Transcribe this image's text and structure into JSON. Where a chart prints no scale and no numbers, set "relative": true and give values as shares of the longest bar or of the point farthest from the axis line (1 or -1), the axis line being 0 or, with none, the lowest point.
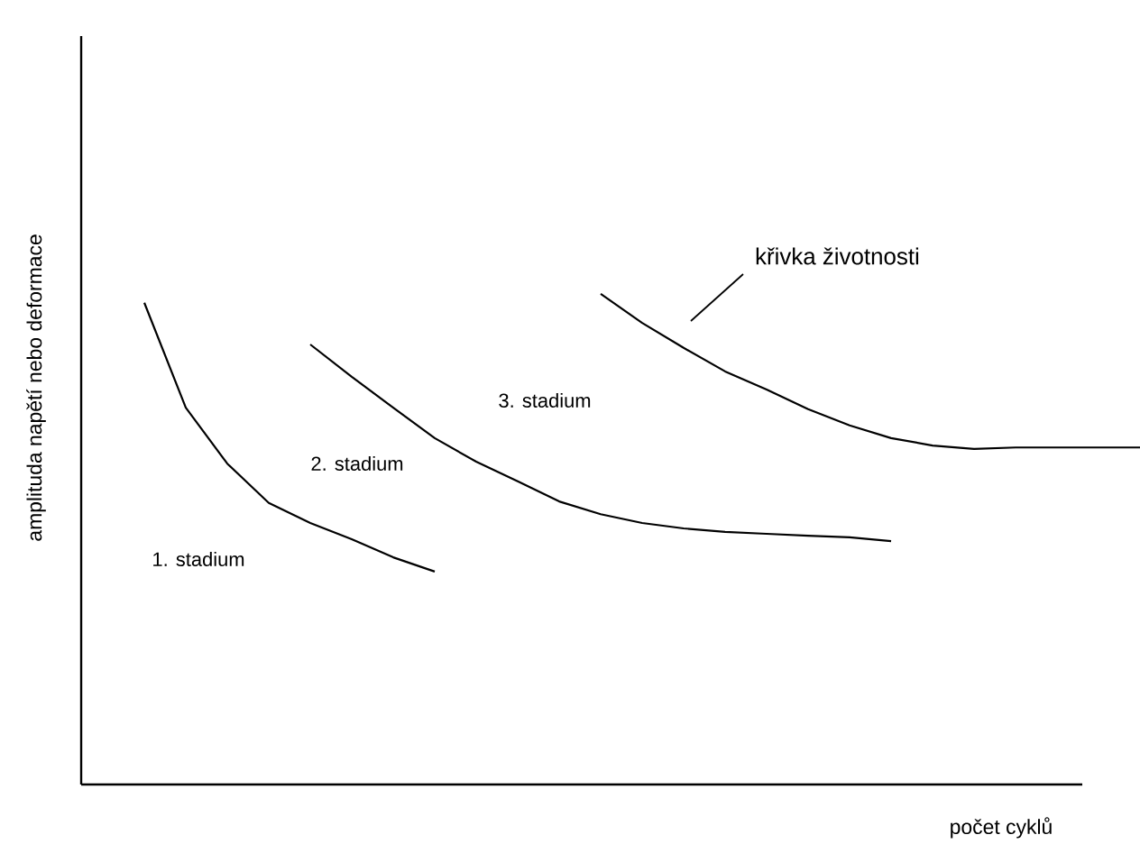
{
  "chart_data": {
    "type": "line",
    "relative": true,
    "xlabel": "počet cyklů",
    "ylabel": "amplituda napětí nebo deformace",
    "marker": "none",
    "line_style": "solid",
    "categories": [
      null,
      null,
      null,
      null,
      null,
      null,
      null,
      null,
      null,
      null,
      null,
      null,
      null,
      null,
      null,
      null,
      null,
      null,
      null,
      null,
      null,
      null,
      null,
      null,
      null
    ],
    "series": [
      {
        "color": "#000000",
        "values": [
          0.982,
          0.768,
          0.654,
          0.574,
          0.533,
          0.5,
          0.463,
          0.434,
          null,
          null,
          null,
          null,
          null,
          null,
          null,
          null,
          null,
          null,
          null,
          null,
          null,
          null,
          null,
          null,
          null
        ]
      },
      {
        "color": "#000000",
        "values": [
          null,
          null,
          null,
          null,
          0.897,
          0.831,
          0.768,
          0.706,
          0.658,
          0.618,
          0.577,
          0.551,
          0.533,
          0.522,
          0.515,
          0.511,
          0.507,
          0.504,
          0.496,
          null,
          null,
          null,
          null,
          null,
          null
        ]
      },
      {
        "color": "#000000",
        "values": [
          null,
          null,
          null,
          null,
          null,
          null,
          null,
          null,
          null,
          null,
          null,
          1.0,
          0.941,
          0.89,
          0.842,
          0.805,
          0.765,
          0.732,
          0.706,
          0.691,
          0.684,
          0.687,
          0.687,
          0.687,
          0.687
        ]
      }
    ],
    "annotations": [
      "1. stadium",
      "2. stadium",
      "3. stadium",
      "křivka životnosti"
    ]
  }
}
